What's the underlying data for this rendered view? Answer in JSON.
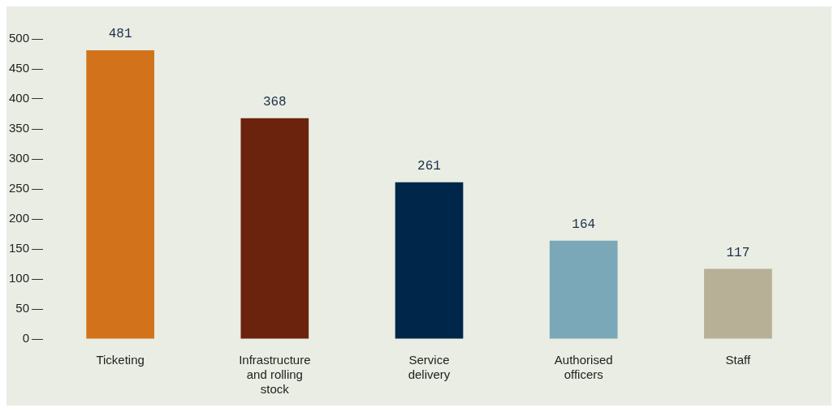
{
  "chart_data": {
    "type": "bar",
    "categories": [
      "Ticketing",
      "Infrastructure and rolling stock",
      "Service delivery",
      "Authorised officers",
      "Staff"
    ],
    "values": [
      481,
      368,
      261,
      164,
      117
    ],
    "colors": [
      "#d2731b",
      "#6b230e",
      "#00264a",
      "#7aa8b8",
      "#b8b096"
    ],
    "ylim": [
      0,
      500
    ],
    "yticks": [
      0,
      50,
      100,
      150,
      200,
      250,
      300,
      350,
      400,
      450,
      500
    ],
    "data_labels": true,
    "legend": false,
    "grid": false
  }
}
